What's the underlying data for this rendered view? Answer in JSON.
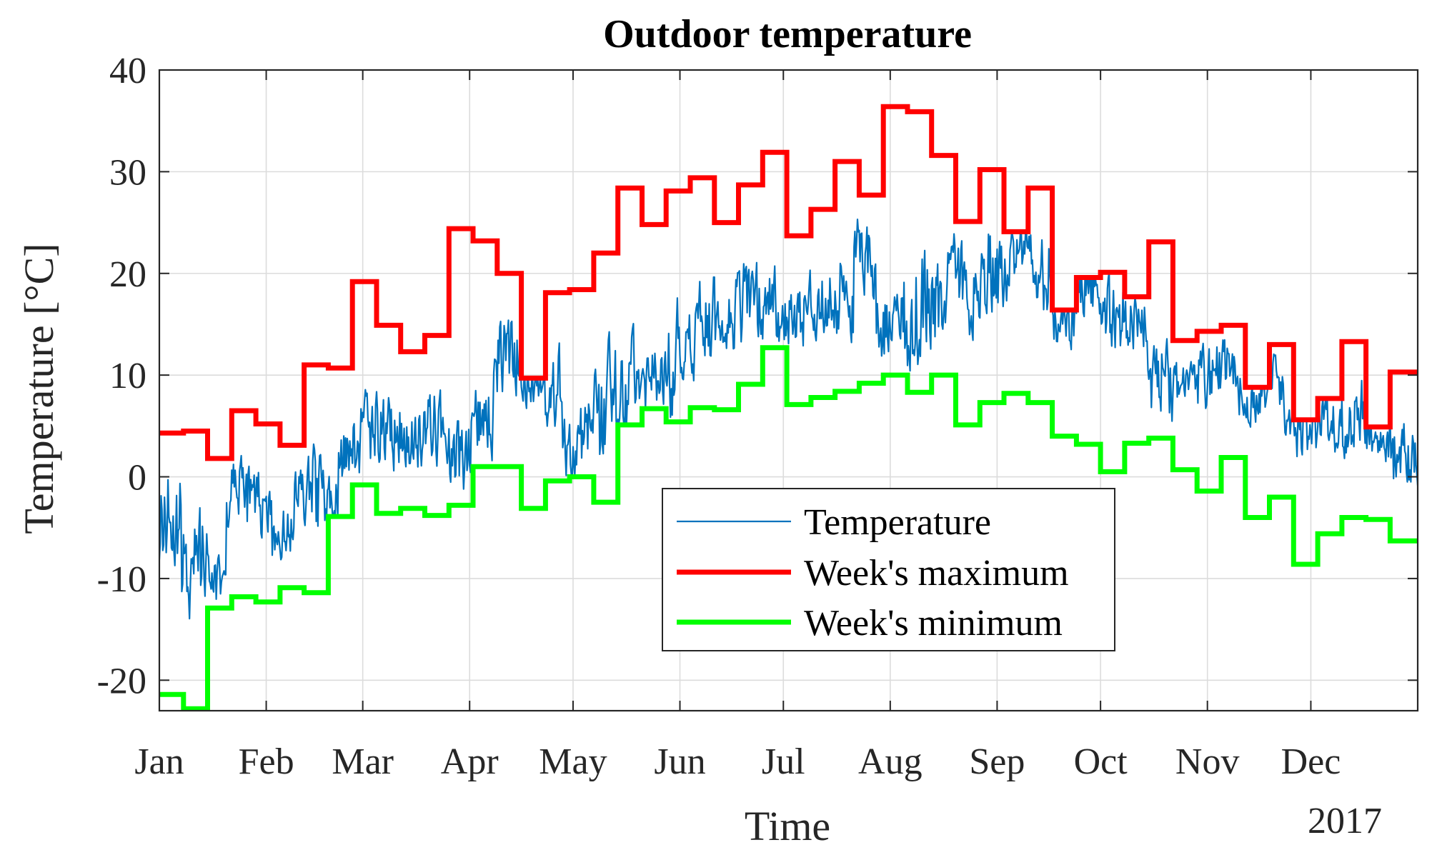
{
  "chart_data": {
    "type": "line",
    "title": "Outdoor temperature",
    "xlabel": "Time",
    "ylabel": "Temperature [°C]",
    "x_secondary_label": "2017",
    "ylim": [
      -23,
      40
    ],
    "yticks": [
      40,
      30,
      20,
      10,
      0,
      -10,
      -20
    ],
    "ytick_labels": [
      "40",
      "30",
      "20",
      "10",
      "0",
      "-10",
      "-20"
    ],
    "xlim_day": [
      0,
      365
    ],
    "xticks": [
      {
        "label": "Jan",
        "day": 0
      },
      {
        "label": "Feb",
        "day": 31
      },
      {
        "label": "Mar",
        "day": 59
      },
      {
        "label": "Apr",
        "day": 90
      },
      {
        "label": "May",
        "day": 120
      },
      {
        "label": "Jun",
        "day": 151
      },
      {
        "label": "Jul",
        "day": 181
      },
      {
        "label": "Aug",
        "day": 212
      },
      {
        "label": "Sep",
        "day": 243
      },
      {
        "label": "Oct",
        "day": 273
      },
      {
        "label": "Nov",
        "day": 304
      },
      {
        "label": "Dec",
        "day": 334
      }
    ],
    "grid": true,
    "legend_position": "center",
    "series": [
      {
        "name": "Temperature",
        "color": "#0072BD",
        "style": "thin-line",
        "note": "hourly outdoor temperature; drawn as a noisy signal bounded by weekly minimum and maximum",
        "weekly_mean_approx": [
          -4,
          -9,
          -10,
          -2,
          -3,
          -6,
          -1,
          -3,
          2,
          5,
          4,
          4,
          5,
          4,
          7,
          12,
          10,
          9,
          3,
          5,
          8,
          9,
          10,
          13,
          15,
          16,
          17,
          17,
          16,
          18,
          18,
          21,
          15,
          16,
          17,
          19,
          18,
          20,
          22,
          20,
          15,
          18,
          16,
          15,
          10,
          9,
          10,
          11,
          8,
          11,
          7,
          6,
          5,
          6,
          3,
          2,
          2
        ]
      },
      {
        "name": "Week's maximum",
        "color": "#FF0000",
        "style": "thick-step",
        "week_days": [
          0,
          7,
          14,
          21,
          28,
          35,
          42,
          49,
          56,
          63,
          70,
          77,
          84,
          91,
          98,
          105,
          112,
          119,
          126,
          133,
          140,
          147,
          154,
          161,
          168,
          175,
          182,
          189,
          196,
          203,
          210,
          217,
          224,
          231,
          238,
          245,
          252,
          259,
          266,
          273,
          280,
          287,
          294,
          301,
          308,
          315,
          322,
          329,
          336,
          343,
          350,
          357,
          364
        ],
        "values": [
          4.3,
          4.5,
          1.8,
          6.5,
          5.2,
          3.1,
          11.0,
          10.7,
          19.2,
          14.9,
          12.3,
          13.9,
          24.4,
          23.2,
          20.0,
          9.7,
          18.1,
          18.4,
          22.0,
          28.4,
          24.8,
          28.1,
          29.4,
          25.0,
          28.7,
          31.9,
          23.7,
          26.3,
          31.0,
          27.7,
          36.4,
          35.9,
          31.6,
          25.1,
          30.2,
          24.1,
          28.4,
          16.4,
          19.6,
          20.1,
          17.7,
          23.1,
          13.4,
          14.3,
          14.9,
          8.8,
          13.0,
          5.6,
          7.7,
          13.3,
          4.9,
          10.3,
          10.3
        ]
      },
      {
        "name": "Week's minimum",
        "color": "#00FF00",
        "style": "thick-step",
        "week_days": [
          0,
          7,
          14,
          21,
          28,
          35,
          42,
          49,
          56,
          63,
          70,
          77,
          84,
          91,
          98,
          105,
          112,
          119,
          126,
          133,
          140,
          147,
          154,
          161,
          168,
          175,
          182,
          189,
          196,
          203,
          210,
          217,
          224,
          231,
          238,
          245,
          252,
          259,
          266,
          273,
          280,
          287,
          294,
          301,
          308,
          315,
          322,
          329,
          336,
          343,
          350,
          357,
          364
        ],
        "values": [
          -21.4,
          -22.8,
          -12.9,
          -11.8,
          -12.3,
          -10.9,
          -11.4,
          -3.9,
          -0.8,
          -3.6,
          -3.1,
          -3.8,
          -2.8,
          1.0,
          1.0,
          -3.1,
          -0.4,
          0.0,
          -2.5,
          5.1,
          6.7,
          5.4,
          6.8,
          6.6,
          9.1,
          12.7,
          7.1,
          7.8,
          8.4,
          9.2,
          10.0,
          8.3,
          10.0,
          5.1,
          7.3,
          8.2,
          7.3,
          4.0,
          3.2,
          0.5,
          3.3,
          3.8,
          0.7,
          -1.4,
          1.9,
          -4.0,
          -2.0,
          -8.6,
          -5.6,
          -4.0,
          -4.2,
          -6.3,
          -6.3
        ]
      }
    ]
  }
}
